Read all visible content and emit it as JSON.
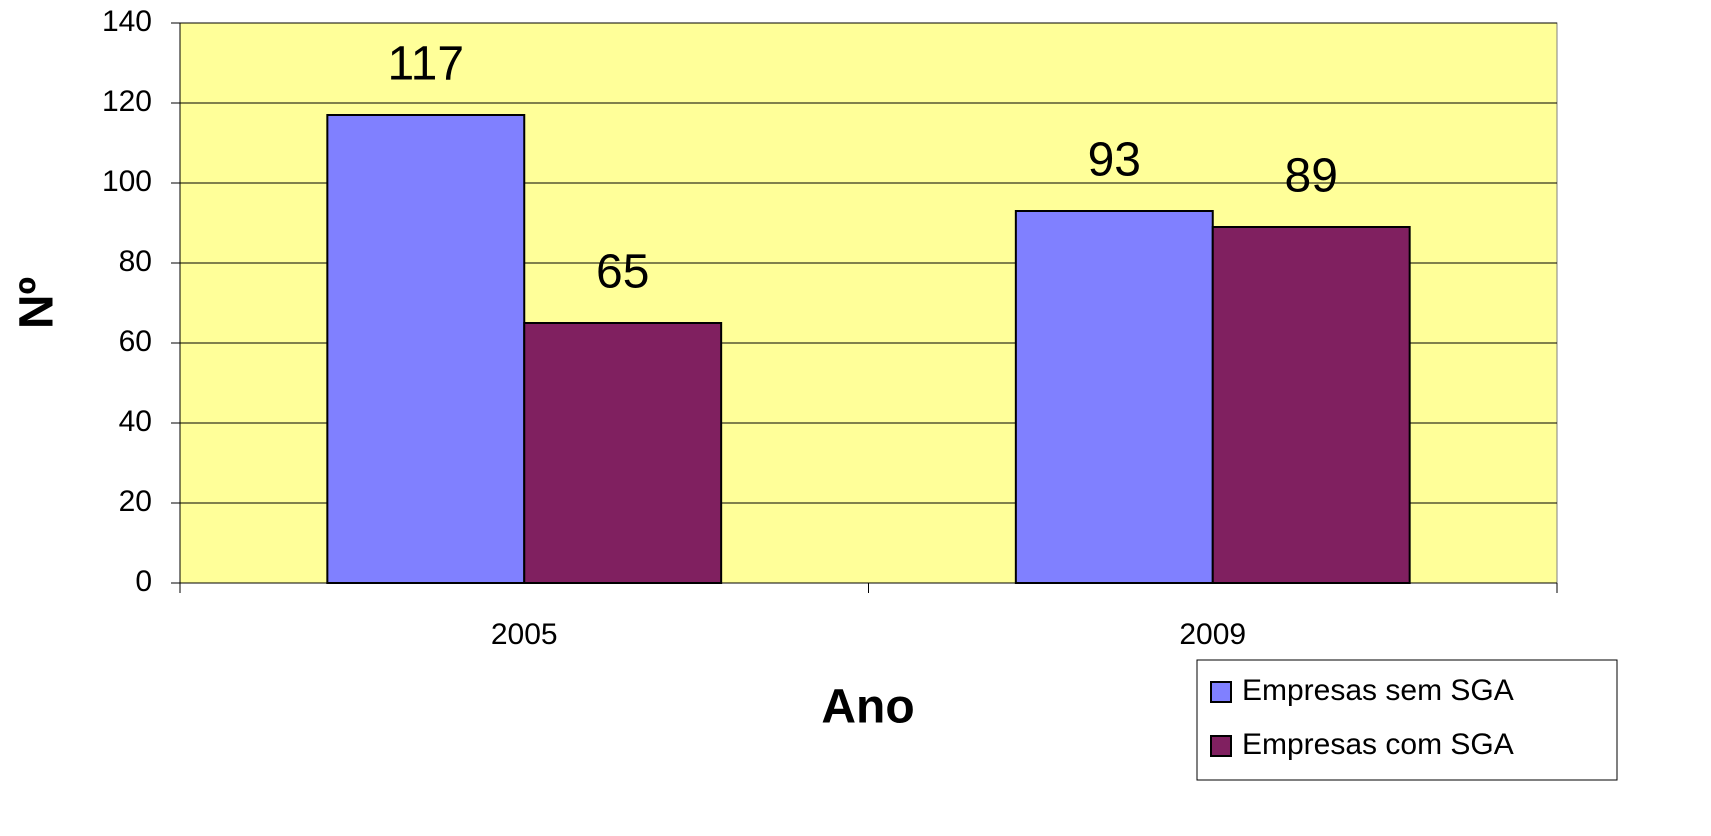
{
  "chart_data": {
    "type": "bar",
    "categories": [
      "2005",
      "2009"
    ],
    "series": [
      {
        "name": "Empresas sem SGA",
        "color": "#8080ff",
        "values": [
          117,
          93
        ]
      },
      {
        "name": "Empresas com SGA",
        "color": "#802060",
        "values": [
          65,
          89
        ]
      }
    ],
    "x_label": "Ano",
    "y_label": "Nº",
    "ylim": [
      0,
      140
    ],
    "yticks": [
      0,
      20,
      40,
      60,
      80,
      100,
      120,
      140
    ],
    "grid": true,
    "legend": "bottom-right",
    "plot_background": "#ffff99"
  }
}
